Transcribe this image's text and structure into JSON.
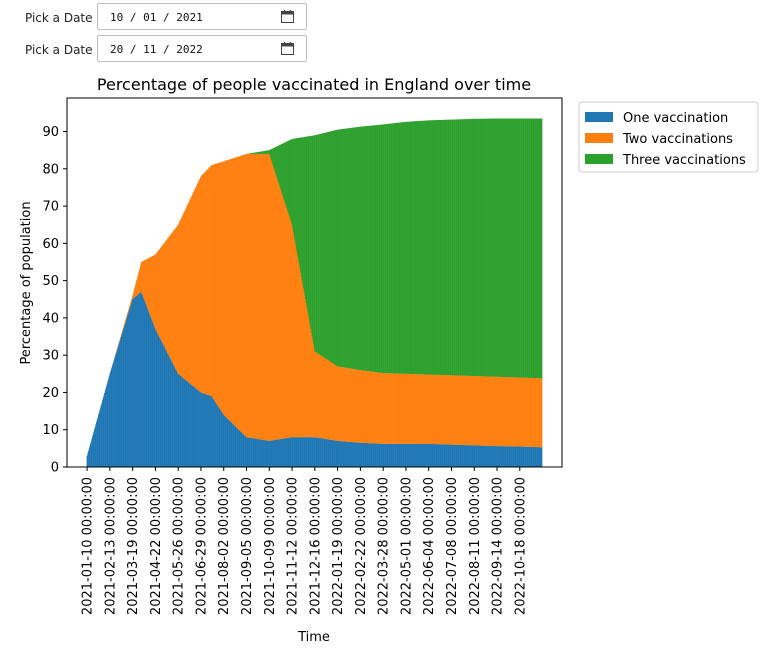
{
  "date_pickers": [
    {
      "label": "Pick a Date",
      "value": "10 / 01 / 2021",
      "icon": "calendar-icon"
    },
    {
      "label": "Pick a Date",
      "value": "20 / 11 / 2022",
      "icon": "calendar-icon"
    }
  ],
  "chart_data": {
    "type": "bar",
    "stacked": true,
    "title": "Percentage of people vaccinated in England over time",
    "xlabel": "Time",
    "ylabel": "Percentage of population",
    "ylim": [
      0,
      99
    ],
    "yticks": [
      0,
      10,
      20,
      30,
      40,
      50,
      60,
      70,
      80,
      90
    ],
    "xticks": [
      "2021-01-10 00:00:00",
      "2021-02-13 00:00:00",
      "2021-03-19 00:00:00",
      "2021-04-22 00:00:00",
      "2021-05-26 00:00:00",
      "2021-06-29 00:00:00",
      "2021-08-02 00:00:00",
      "2021-09-05 00:00:00",
      "2021-10-09 00:00:00",
      "2021-11-12 00:00:00",
      "2021-12-16 00:00:00",
      "2022-01-19 00:00:00",
      "2022-02-22 00:00:00",
      "2022-03-28 00:00:00",
      "2022-05-01 00:00:00",
      "2022-06-04 00:00:00",
      "2022-07-08 00:00:00",
      "2022-08-11 00:00:00",
      "2022-09-14 00:00:00",
      "2022-10-18 00:00:00"
    ],
    "legend_position": "outside-top-right",
    "grid": false,
    "x_start": "2021-01-10",
    "x_step_days": 1,
    "x_count": 680,
    "series_profile_dates": [
      "2021-01-10",
      "2021-02-13",
      "2021-03-19",
      "2021-04-01",
      "2021-04-22",
      "2021-05-26",
      "2021-06-29",
      "2021-07-15",
      "2021-08-02",
      "2021-09-05",
      "2021-10-09",
      "2021-11-12",
      "2021-12-16",
      "2022-01-19",
      "2022-02-22",
      "2022-03-28",
      "2022-05-01",
      "2022-06-04",
      "2022-07-08",
      "2022-08-11",
      "2022-09-14",
      "2022-10-18",
      "2022-11-20"
    ],
    "series": [
      {
        "name": "One vaccination",
        "color": "#1f77b4",
        "values": [
          3,
          25,
          45,
          47,
          37,
          25,
          20,
          19,
          14,
          8,
          7,
          8,
          8,
          7,
          6.5,
          6.2,
          6.2,
          6.2,
          6,
          5.8,
          5.6,
          5.5,
          5.3
        ]
      },
      {
        "name": "Two vaccinations",
        "color": "#ff7f0e",
        "values": [
          0,
          0,
          1,
          8,
          20,
          40,
          58,
          62,
          68,
          76,
          77,
          57,
          23,
          20,
          19.5,
          19,
          18.8,
          18.6,
          18.6,
          18.6,
          18.6,
          18.5,
          18.5
        ]
      },
      {
        "name": "Three vaccinations",
        "color": "#2ca02c",
        "values": [
          0,
          0,
          0,
          0,
          0,
          0,
          0,
          0,
          0,
          0,
          1,
          23,
          58,
          63.5,
          65.3,
          66.7,
          67.6,
          68.2,
          68.6,
          69,
          69.3,
          69.5,
          69.7
        ]
      }
    ]
  }
}
